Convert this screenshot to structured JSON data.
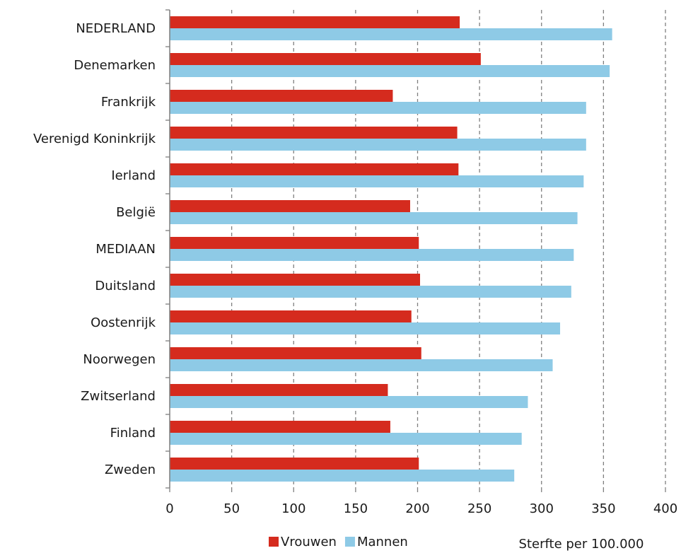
{
  "chart_data": {
    "type": "bar",
    "orientation": "horizontal",
    "categories": [
      "NEDERLAND",
      "Denemarken",
      "Frankrijk",
      "Verenigd Koninkrijk",
      "Ierland",
      "België",
      "MEDIAAN",
      "Duitsland",
      "Oostenrijk",
      "Noorwegen",
      "Zwitserland",
      "Finland",
      "Zweden"
    ],
    "series": [
      {
        "name": "Vrouwen",
        "color": "#d52b1e",
        "values": [
          234,
          251,
          180,
          232,
          233,
          194,
          201,
          202,
          195,
          203,
          176,
          178,
          201
        ]
      },
      {
        "name": "Mannen",
        "color": "#8ecae6",
        "values": [
          357,
          355,
          336,
          336,
          334,
          329,
          326,
          324,
          315,
          309,
          289,
          284,
          278
        ]
      }
    ],
    "xlim": [
      0,
      400
    ],
    "xticks": [
      "0",
      "50",
      "100",
      "150",
      "200",
      "250",
      "300",
      "350",
      "400"
    ],
    "xlabel": "Sterfte per 100.000",
    "grid": "vertical-dashed",
    "legend": "bottom"
  }
}
